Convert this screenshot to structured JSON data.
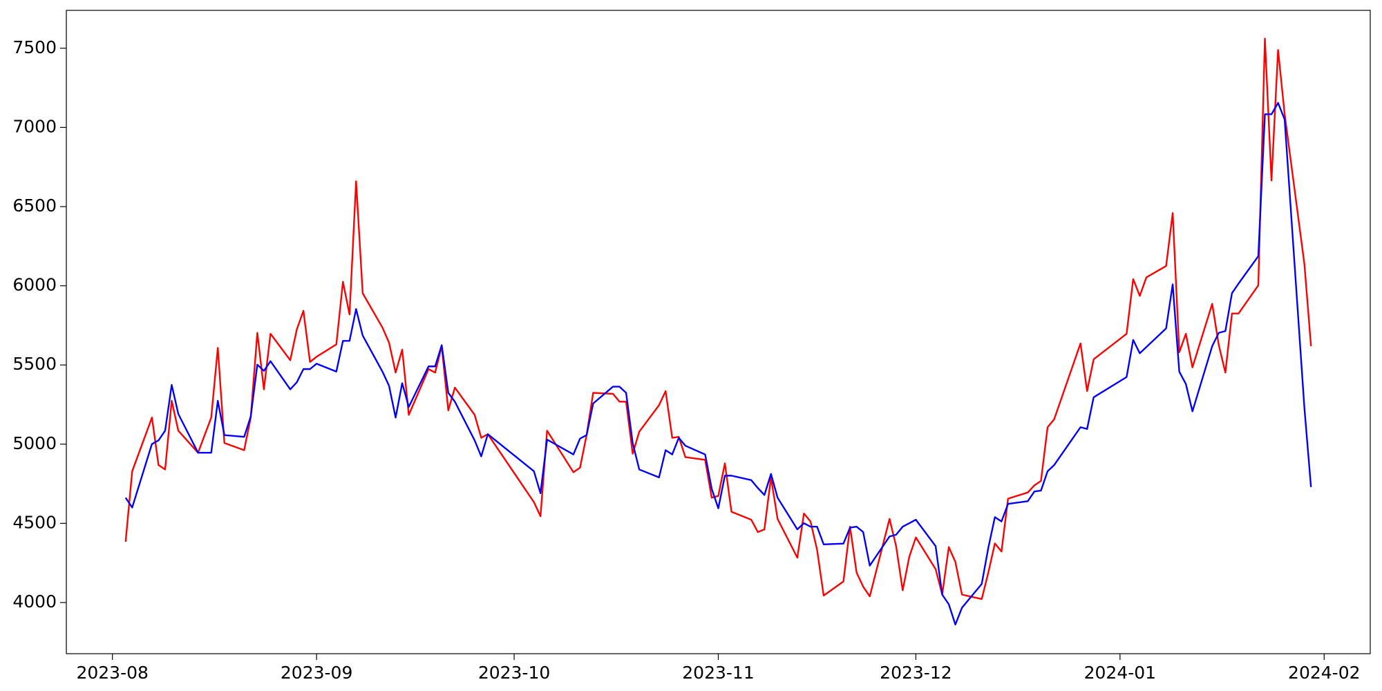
{
  "chart_data": {
    "type": "line",
    "x": [
      "2023-08-03",
      "2023-08-04",
      "2023-08-07",
      "2023-08-08",
      "2023-08-09",
      "2023-08-10",
      "2023-08-11",
      "2023-08-14",
      "2023-08-16",
      "2023-08-17",
      "2023-08-18",
      "2023-08-21",
      "2023-08-22",
      "2023-08-23",
      "2023-08-24",
      "2023-08-25",
      "2023-08-28",
      "2023-08-29",
      "2023-08-30",
      "2023-08-31",
      "2023-09-01",
      "2023-09-04",
      "2023-09-05",
      "2023-09-06",
      "2023-09-07",
      "2023-09-08",
      "2023-09-11",
      "2023-09-12",
      "2023-09-13",
      "2023-09-14",
      "2023-09-15",
      "2023-09-18",
      "2023-09-19",
      "2023-09-20",
      "2023-09-21",
      "2023-09-22",
      "2023-09-25",
      "2023-09-26",
      "2023-09-27",
      "2023-10-04",
      "2023-10-05",
      "2023-10-06",
      "2023-10-10",
      "2023-10-11",
      "2023-10-12",
      "2023-10-13",
      "2023-10-16",
      "2023-10-17",
      "2023-10-18",
      "2023-10-19",
      "2023-10-20",
      "2023-10-23",
      "2023-10-24",
      "2023-10-25",
      "2023-10-26",
      "2023-10-27",
      "2023-10-30",
      "2023-10-31",
      "2023-11-01",
      "2023-11-02",
      "2023-11-03",
      "2023-11-06",
      "2023-11-07",
      "2023-11-08",
      "2023-11-09",
      "2023-11-10",
      "2023-11-13",
      "2023-11-14",
      "2023-11-15",
      "2023-11-16",
      "2023-11-17",
      "2023-11-20",
      "2023-11-21",
      "2023-11-22",
      "2023-11-23",
      "2023-11-24",
      "2023-11-27",
      "2023-11-28",
      "2023-11-29",
      "2023-11-30",
      "2023-12-01",
      "2023-12-04",
      "2023-12-05",
      "2023-12-06",
      "2023-12-07",
      "2023-12-08",
      "2023-12-11",
      "2023-12-12",
      "2023-12-13",
      "2023-12-14",
      "2023-12-15",
      "2023-12-18",
      "2023-12-19",
      "2023-12-20",
      "2023-12-21",
      "2023-12-22",
      "2023-12-26",
      "2023-12-27",
      "2023-12-28",
      "2024-01-02",
      "2024-01-03",
      "2024-01-04",
      "2024-01-05",
      "2024-01-08",
      "2024-01-09",
      "2024-01-10",
      "2024-01-11",
      "2024-01-12",
      "2024-01-15",
      "2024-01-16",
      "2024-01-17",
      "2024-01-18",
      "2024-01-19",
      "2024-01-22",
      "2024-01-23",
      "2024-01-24",
      "2024-01-25",
      "2024-01-26",
      "2024-01-29",
      "2024-01-30"
    ],
    "series": [
      {
        "color": "#ff0000",
        "values": [
          4384,
          4829,
          5168,
          4868,
          4840,
          5274,
          5085,
          4946,
          5168,
          5608,
          5007,
          4962,
          5168,
          5703,
          5346,
          5697,
          5530,
          5725,
          5842,
          5519,
          5552,
          5630,
          6025,
          5819,
          6660,
          5953,
          5736,
          5641,
          5452,
          5597,
          5185,
          5474,
          5452,
          5619,
          5213,
          5357,
          5185,
          5040,
          5063,
          4634,
          4545,
          5085,
          4823,
          4851,
          5057,
          5324,
          5318,
          5268,
          5268,
          4940,
          5079,
          5246,
          5335,
          5040,
          5046,
          4918,
          4901,
          4662,
          4673,
          4879,
          4573,
          4523,
          4445,
          4462,
          4790,
          4528,
          4283,
          4562,
          4512,
          4333,
          4044,
          4133,
          4479,
          4189,
          4100,
          4039,
          4528,
          4356,
          4077,
          4289,
          4411,
          4211,
          4050,
          4350,
          4256,
          4050,
          4022,
          4189,
          4373,
          4322,
          4656,
          4695,
          4740,
          4768,
          5107,
          5157,
          5636,
          5335,
          5536,
          5697,
          6042,
          5936,
          6053,
          6125,
          6459,
          5580,
          5697,
          5485,
          5886,
          5625,
          5452,
          5825,
          5825,
          6003,
          7561,
          6665,
          7489,
          7083,
          6137,
          5619
        ]
      },
      {
        "color": "#0000ff",
        "values": [
          4662,
          4600,
          5001,
          5024,
          5085,
          5374,
          5191,
          4946,
          4946,
          5274,
          5057,
          5046,
          5174,
          5502,
          5463,
          5524,
          5346,
          5391,
          5474,
          5474,
          5508,
          5458,
          5652,
          5652,
          5853,
          5686,
          5458,
          5369,
          5168,
          5385,
          5235,
          5491,
          5491,
          5625,
          5324,
          5268,
          5024,
          4923,
          5063,
          4829,
          4690,
          5029,
          4935,
          5035,
          5057,
          5257,
          5363,
          5363,
          5324,
          5007,
          4840,
          4790,
          4962,
          4935,
          5040,
          4990,
          4935,
          4718,
          4595,
          4801,
          4801,
          4773,
          4723,
          4679,
          4812,
          4662,
          4462,
          4501,
          4479,
          4479,
          4367,
          4372,
          4473,
          4479,
          4445,
          4233,
          4417,
          4428,
          4479,
          4501,
          4523,
          4356,
          4050,
          3989,
          3861,
          3967,
          4117,
          4345,
          4539,
          4512,
          4623,
          4640,
          4701,
          4707,
          4829,
          4868,
          5107,
          5096,
          5296,
          5424,
          5658,
          5574,
          5613,
          5731,
          6009,
          5458,
          5380,
          5207,
          5619,
          5703,
          5714,
          5953,
          6014,
          6187,
          7083,
          7083,
          7155,
          7050,
          5229,
          4729
        ]
      }
    ],
    "xlim": [
      "2023-07-25",
      "2024-02-08"
    ],
    "xticks": [
      {
        "value": "2023-08-01",
        "label": "2023-08"
      },
      {
        "value": "2023-09-01",
        "label": "2023-09"
      },
      {
        "value": "2023-10-01",
        "label": "2023-10"
      },
      {
        "value": "2023-11-01",
        "label": "2023-11"
      },
      {
        "value": "2023-12-01",
        "label": "2023-12"
      },
      {
        "value": "2024-01-01",
        "label": "2024-01"
      },
      {
        "value": "2024-02-01",
        "label": "2024-02"
      }
    ],
    "ylim": [
      3677,
      7739
    ],
    "yticks": [
      4000,
      4500,
      5000,
      5500,
      6000,
      6500,
      7000,
      7500
    ],
    "grid": false
  }
}
